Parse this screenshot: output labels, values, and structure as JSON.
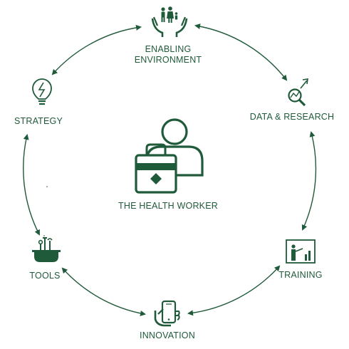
{
  "diagram": {
    "accent_color": "#1f5a3a",
    "center": {
      "label": "THE HEALTH WORKER",
      "icon": "health-worker-icon"
    },
    "nodes": [
      {
        "id": "enabling-environment",
        "lines": [
          "ENABLING",
          "ENVIRONMENT"
        ],
        "icon": "family-in-hands-icon"
      },
      {
        "id": "data-research",
        "lines": [
          "DATA & RESEARCH"
        ],
        "icon": "magnifier-chart-icon"
      },
      {
        "id": "training",
        "lines": [
          "TRAINING"
        ],
        "icon": "presentation-board-icon"
      },
      {
        "id": "innovation",
        "lines": [
          "INNOVATION"
        ],
        "icon": "hand-phone-icon"
      },
      {
        "id": "tools",
        "lines": [
          "TOOLS"
        ],
        "icon": "toolbox-icon"
      },
      {
        "id": "strategy",
        "lines": [
          "STRATEGY"
        ],
        "icon": "lightbulb-icon"
      }
    ]
  }
}
